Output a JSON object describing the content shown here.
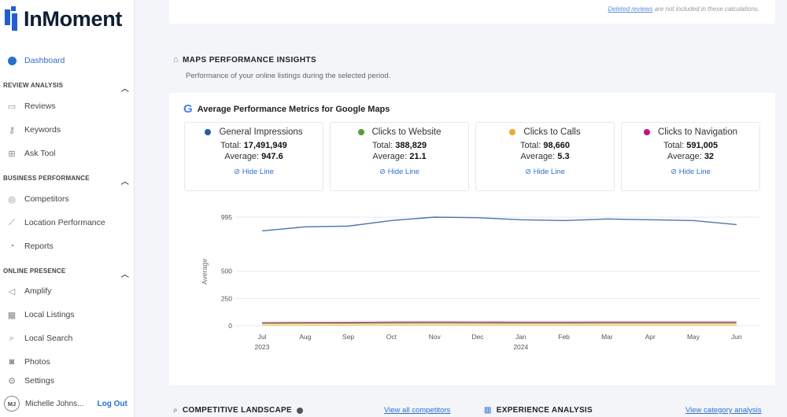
{
  "brand": {
    "name": "InMoment"
  },
  "sidebar": {
    "dashboard": "Dashboard",
    "sections": [
      {
        "title": "REVIEW ANALYSIS",
        "items": [
          {
            "label": "Reviews",
            "icon": "chat-icon"
          },
          {
            "label": "Keywords",
            "icon": "key-icon"
          },
          {
            "label": "Ask Tool",
            "icon": "ask-icon"
          }
        ]
      },
      {
        "title": "BUSINESS PERFORMANCE",
        "items": [
          {
            "label": "Competitors",
            "icon": "medal-icon"
          },
          {
            "label": "Location Performance",
            "icon": "line-chart-icon"
          },
          {
            "label": "Reports",
            "icon": "pie-icon"
          }
        ]
      },
      {
        "title": "ONLINE PRESENCE",
        "items": [
          {
            "label": "Amplify",
            "icon": "megaphone-icon"
          },
          {
            "label": "Local Listings",
            "icon": "listing-icon"
          },
          {
            "label": "Local Search",
            "icon": "search-icon"
          },
          {
            "label": "Photos",
            "icon": "camera-icon"
          }
        ]
      }
    ],
    "settings": "Settings",
    "user": {
      "initials": "MJ",
      "name": "Michelle Johns...",
      "logout": "Log Out"
    }
  },
  "top_note": {
    "link": "Deleted reviews",
    "text": " are not included in these calculations."
  },
  "maps": {
    "title": "MAPS PERFORMANCE INSIGHTS",
    "subtitle": "Performance of your online listings during the selected period.",
    "card_title": "Average Performance Metrics for Google Maps",
    "metrics": [
      {
        "name": "General Impressions",
        "total": "17,491,949",
        "average": "947.6",
        "color": "#1f5fa8"
      },
      {
        "name": "Clicks to Website",
        "total": "388,829",
        "average": "21.1",
        "color": "#5a9e3a"
      },
      {
        "name": "Clicks to Calls",
        "total": "98,660",
        "average": "5.3",
        "color": "#f0a830"
      },
      {
        "name": "Clicks to Navigation",
        "total": "591,005",
        "average": "32",
        "color": "#c0147e"
      }
    ],
    "total_label": "Total: ",
    "average_label": "Average: ",
    "hide_label": "Hide Line"
  },
  "chart_data": {
    "type": "line",
    "ylabel": "Average",
    "yticks": [
      0,
      250,
      500,
      995
    ],
    "ylim": [
      0,
      995
    ],
    "grid": true,
    "categories": [
      "Jul",
      "Aug",
      "Sep",
      "Oct",
      "Nov",
      "Dec",
      "Jan",
      "Feb",
      "Mar",
      "Apr",
      "May",
      "Jun"
    ],
    "year_labels": {
      "Jul": "2023",
      "Jan": "2024"
    },
    "series": [
      {
        "name": "General Impressions",
        "color": "#4a78a8",
        "values": [
          869,
          906,
          913,
          964,
          995,
          990,
          971,
          964,
          978,
          971,
          964,
          927
        ]
      },
      {
        "name": "Clicks to Website",
        "color": "#8aa860",
        "values": [
          20,
          21,
          21,
          22,
          22,
          21,
          21,
          21,
          21,
          21,
          21,
          21
        ]
      },
      {
        "name": "Clicks to Calls",
        "color": "#f0d060",
        "values": [
          5,
          5,
          5,
          6,
          6,
          5,
          5,
          5,
          5,
          5,
          5,
          5
        ]
      },
      {
        "name": "Clicks to Navigation",
        "color": "#c03070",
        "values": [
          27,
          29,
          30,
          33,
          34,
          33,
          32,
          32,
          33,
          33,
          33,
          33
        ]
      }
    ]
  },
  "bottom": {
    "competitive": "COMPETITIVE LANDSCAPE",
    "view_competitors": "View all competitors",
    "experience": "EXPERIENCE ANALYSIS",
    "view_category": "View category analysis"
  }
}
